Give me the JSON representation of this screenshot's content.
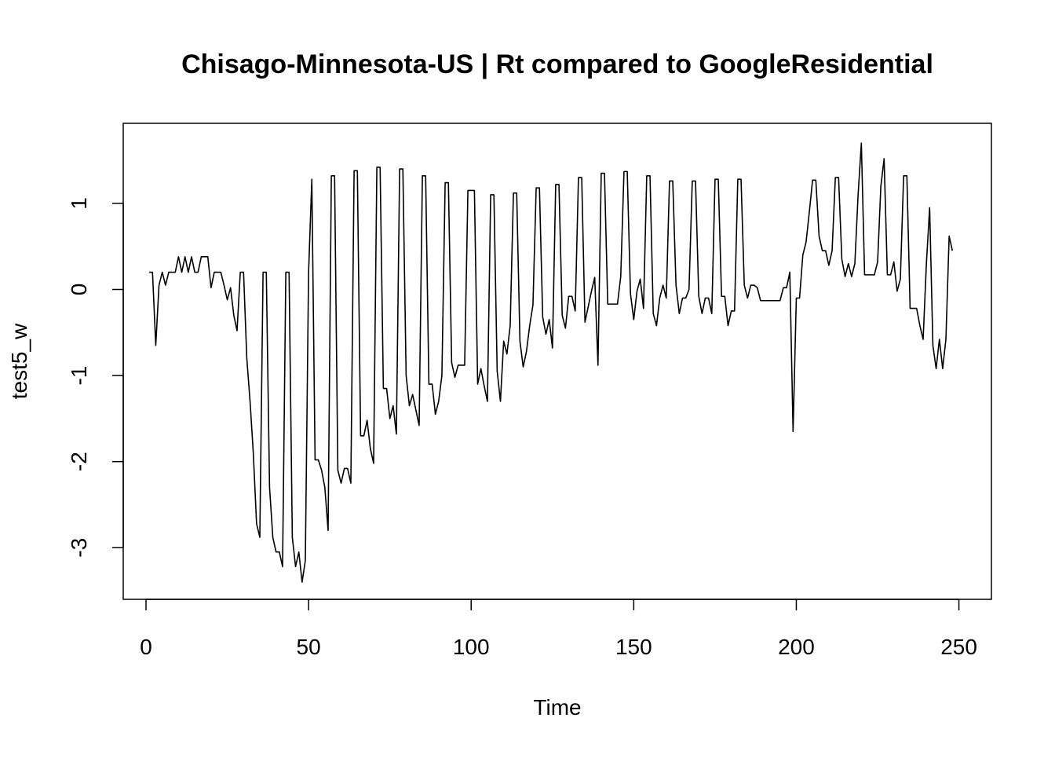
{
  "chart_data": {
    "type": "line",
    "title": "Chisago-Minnesota-US | Rt compared to GoogleResidential",
    "xlabel": "Time",
    "ylabel": "test5_w",
    "xlim": [
      -7,
      260
    ],
    "ylim": [
      -3.6,
      1.93
    ],
    "x_ticks": [
      0,
      50,
      100,
      150,
      200,
      250
    ],
    "y_ticks": [
      -3,
      -2,
      -1,
      0,
      1
    ],
    "grid": false,
    "legend": "none",
    "line_color": "#000000",
    "series": [
      {
        "x": [
          1,
          2,
          3,
          4,
          5,
          6,
          7,
          8,
          9,
          10,
          11,
          12,
          13,
          14,
          15,
          16,
          17,
          18,
          19,
          20,
          21,
          22,
          23,
          24,
          25,
          26,
          27,
          28,
          29,
          30,
          31,
          32,
          33,
          34,
          35,
          36,
          37,
          38,
          39,
          40,
          41,
          42,
          43,
          44,
          45,
          46,
          47,
          48,
          49,
          50,
          51,
          52,
          53,
          54,
          55,
          56,
          57,
          58,
          59,
          60,
          61,
          62,
          63,
          64,
          65,
          66,
          67,
          68,
          69,
          70,
          71,
          72,
          73,
          74,
          75,
          76,
          77,
          78,
          79,
          80,
          81,
          82,
          83,
          84,
          85,
          86,
          87,
          88,
          89,
          90,
          91,
          92,
          93,
          94,
          95,
          96,
          97,
          98,
          99,
          100,
          101,
          102,
          103,
          104,
          105,
          106,
          107,
          108,
          109,
          110,
          111,
          112,
          113,
          114,
          115,
          116,
          117,
          118,
          119,
          120,
          121,
          122,
          123,
          124,
          125,
          126,
          127,
          128,
          129,
          130,
          131,
          132,
          133,
          134,
          135,
          136,
          137,
          138,
          139,
          140,
          141,
          142,
          143,
          144,
          145,
          146,
          147,
          148,
          149,
          150,
          151,
          152,
          153,
          154,
          155,
          156,
          157,
          158,
          159,
          160,
          161,
          162,
          163,
          164,
          165,
          166,
          167,
          168,
          169,
          170,
          171,
          172,
          173,
          174,
          175,
          176,
          177,
          178,
          179,
          180,
          181,
          182,
          183,
          184,
          185,
          186,
          187,
          188,
          189,
          190,
          191,
          192,
          193,
          194,
          195,
          196,
          197,
          198,
          199,
          200,
          201,
          202,
          203,
          204,
          205,
          206,
          207,
          208,
          209,
          210,
          211,
          212,
          213,
          214,
          215,
          216,
          217,
          218,
          219,
          220,
          221,
          222,
          223,
          224,
          225,
          226,
          227,
          228,
          229,
          230,
          231,
          232,
          233,
          234,
          235,
          236,
          237,
          238,
          239,
          240,
          241,
          242,
          243,
          244,
          245,
          246,
          247,
          248
        ],
        "values": [
          0.2,
          0.2,
          -0.65,
          0.05,
          0.2,
          0.05,
          0.2,
          0.2,
          0.2,
          0.38,
          0.2,
          0.38,
          0.2,
          0.38,
          0.2,
          0.2,
          0.38,
          0.38,
          0.38,
          0.02,
          0.2,
          0.2,
          0.2,
          0.05,
          -0.12,
          0.02,
          -0.3,
          -0.48,
          0.2,
          0.2,
          -0.8,
          -1.3,
          -1.9,
          -2.72,
          -2.88,
          0.2,
          0.2,
          -2.3,
          -2.88,
          -3.05,
          -3.05,
          -3.22,
          0.2,
          0.2,
          -2.88,
          -3.22,
          -3.05,
          -3.4,
          -3.15,
          0.2,
          1.28,
          -1.98,
          -1.98,
          -2.1,
          -2.3,
          -2.8,
          1.32,
          1.32,
          -2.1,
          -2.25,
          -2.08,
          -2.08,
          -2.25,
          1.38,
          1.38,
          -1.7,
          -1.7,
          -1.52,
          -1.85,
          -2.02,
          1.42,
          1.42,
          -1.15,
          -1.15,
          -1.5,
          -1.35,
          -1.68,
          1.4,
          1.4,
          -1.0,
          -1.35,
          -1.22,
          -1.4,
          -1.58,
          1.32,
          1.32,
          -1.1,
          -1.1,
          -1.45,
          -1.3,
          -1.0,
          1.24,
          1.24,
          -0.85,
          -1.02,
          -0.88,
          -0.88,
          -0.88,
          1.15,
          1.15,
          1.15,
          -1.1,
          -0.92,
          -1.12,
          -1.3,
          1.1,
          1.1,
          -0.95,
          -1.3,
          -0.6,
          -0.75,
          -0.42,
          1.12,
          1.12,
          -0.6,
          -0.9,
          -0.72,
          -0.42,
          -0.18,
          1.18,
          1.18,
          -0.32,
          -0.52,
          -0.35,
          -0.68,
          1.22,
          1.22,
          -0.3,
          -0.45,
          -0.08,
          -0.08,
          -0.25,
          1.3,
          1.3,
          -0.38,
          -0.2,
          -0.02,
          0.14,
          -0.88,
          1.35,
          1.35,
          -0.17,
          -0.17,
          -0.17,
          -0.17,
          0.15,
          1.37,
          1.37,
          -0.05,
          -0.35,
          -0.02,
          0.12,
          -0.22,
          1.32,
          1.32,
          -0.28,
          -0.42,
          -0.1,
          0.05,
          -0.1,
          1.26,
          1.26,
          0.05,
          -0.28,
          -0.1,
          -0.1,
          0.0,
          1.26,
          1.26,
          -0.08,
          -0.28,
          -0.1,
          -0.1,
          -0.28,
          1.28,
          1.28,
          -0.08,
          -0.08,
          -0.42,
          -0.25,
          -0.25,
          1.28,
          1.28,
          0.05,
          -0.1,
          0.05,
          0.05,
          0.02,
          -0.13,
          -0.13,
          -0.13,
          -0.13,
          -0.13,
          -0.13,
          -0.13,
          0.02,
          0.02,
          0.2,
          -1.65,
          -0.1,
          -0.1,
          0.4,
          0.55,
          0.9,
          1.27,
          1.27,
          0.62,
          0.45,
          0.45,
          0.28,
          0.45,
          1.3,
          1.3,
          0.35,
          0.15,
          0.3,
          0.15,
          0.3,
          1.1,
          1.7,
          0.17,
          0.17,
          0.17,
          0.17,
          0.32,
          1.2,
          1.52,
          0.17,
          0.17,
          0.32,
          -0.02,
          0.12,
          1.32,
          1.32,
          -0.22,
          -0.22,
          -0.22,
          -0.42,
          -0.58,
          0.3,
          0.95,
          -0.65,
          -0.92,
          -0.58,
          -0.92,
          -0.58,
          0.62,
          0.45
        ]
      }
    ]
  }
}
